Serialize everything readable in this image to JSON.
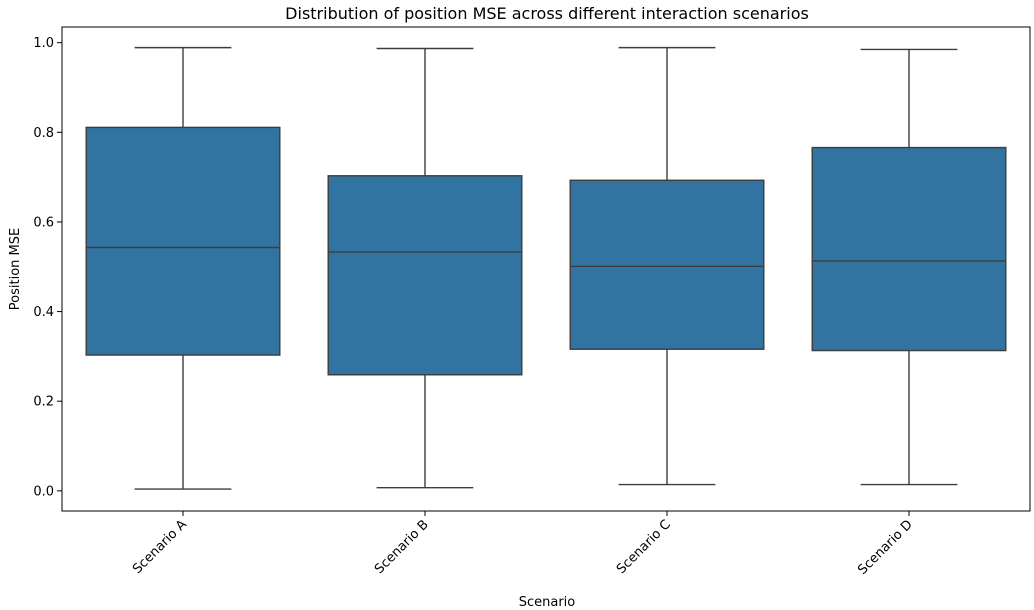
{
  "chart_data": {
    "type": "boxplot",
    "title": "Distribution of position MSE across different interaction scenarios",
    "xlabel": "Scenario",
    "ylabel": "Position MSE",
    "ylim": [
      -0.045,
      1.035
    ],
    "yticks": [
      "0.0",
      "0.2",
      "0.4",
      "0.6",
      "0.8",
      "1.0"
    ],
    "categories": [
      "Scenario A",
      "Scenario B",
      "Scenario C",
      "Scenario D"
    ],
    "boxes": [
      {
        "min": 0.004,
        "q1": 0.303,
        "median": 0.543,
        "q3": 0.811,
        "max": 0.989
      },
      {
        "min": 0.007,
        "q1": 0.259,
        "median": 0.533,
        "q3": 0.703,
        "max": 0.987
      },
      {
        "min": 0.014,
        "q1": 0.316,
        "median": 0.501,
        "q3": 0.693,
        "max": 0.989
      },
      {
        "min": 0.014,
        "q1": 0.313,
        "median": 0.513,
        "q3": 0.766,
        "max": 0.985
      }
    ],
    "box_color": "#3274a1",
    "line_color": "#3d3d3d",
    "grid": false,
    "legend": "none"
  }
}
